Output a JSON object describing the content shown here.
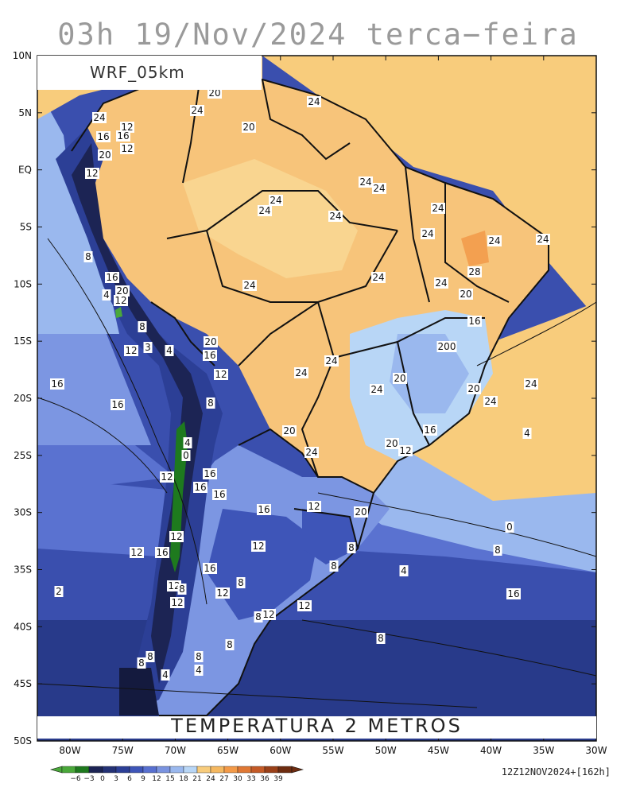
{
  "header": {
    "title": "03h 19/Nov/2024 terca−feira"
  },
  "map": {
    "model_label": "WRF_05km",
    "variable_label": "TEMPERATURA 2 METROS",
    "run_stamp": "12Z12NOV2024+[162h]",
    "lat_ticks": [
      "10N",
      "5N",
      "EQ",
      "5S",
      "10S",
      "15S",
      "20S",
      "25S",
      "30S",
      "35S",
      "40S",
      "45S",
      "50S"
    ],
    "lon_ticks": [
      "80W",
      "75W",
      "70W",
      "65W",
      "60W",
      "55W",
      "50W",
      "45W",
      "40W",
      "35W",
      "30W"
    ],
    "contour_labels": [
      {
        "text": "20"
      },
      {
        "text": "24"
      },
      {
        "text": "24"
      },
      {
        "text": "24"
      },
      {
        "text": "12"
      },
      {
        "text": "16"
      },
      {
        "text": "16"
      },
      {
        "text": "20"
      },
      {
        "text": "12"
      },
      {
        "text": "20"
      },
      {
        "text": "12"
      },
      {
        "text": "24"
      },
      {
        "text": "24"
      },
      {
        "text": "24"
      },
      {
        "text": "24"
      },
      {
        "text": "24"
      },
      {
        "text": "24"
      },
      {
        "text": "24"
      },
      {
        "text": "24"
      },
      {
        "text": "24"
      },
      {
        "text": "8"
      },
      {
        "text": "16"
      },
      {
        "text": "4"
      },
      {
        "text": "20"
      },
      {
        "text": "12"
      },
      {
        "text": "24"
      },
      {
        "text": "24"
      },
      {
        "text": "28"
      },
      {
        "text": "24"
      },
      {
        "text": "20"
      },
      {
        "text": "8"
      },
      {
        "text": "16"
      },
      {
        "text": "12"
      },
      {
        "text": "3"
      },
      {
        "text": "4"
      },
      {
        "text": "20"
      },
      {
        "text": "16"
      },
      {
        "text": "200"
      },
      {
        "text": "12"
      },
      {
        "text": "24"
      },
      {
        "text": "24"
      },
      {
        "text": "20"
      },
      {
        "text": "16"
      },
      {
        "text": "16"
      },
      {
        "text": "8"
      },
      {
        "text": "24"
      },
      {
        "text": "20"
      },
      {
        "text": "24"
      },
      {
        "text": "24"
      },
      {
        "text": "16"
      },
      {
        "text": "20"
      },
      {
        "text": "4"
      },
      {
        "text": "0"
      },
      {
        "text": "20"
      },
      {
        "text": "24"
      },
      {
        "text": "12"
      },
      {
        "text": "4"
      },
      {
        "text": "12"
      },
      {
        "text": "16"
      },
      {
        "text": "16"
      },
      {
        "text": "16"
      },
      {
        "text": "16"
      },
      {
        "text": "12"
      },
      {
        "text": "20"
      },
      {
        "text": "0"
      },
      {
        "text": "12"
      },
      {
        "text": "8"
      },
      {
        "text": "12"
      },
      {
        "text": "16"
      },
      {
        "text": "8"
      },
      {
        "text": "16"
      },
      {
        "text": "12"
      },
      {
        "text": "4"
      },
      {
        "text": "8"
      },
      {
        "text": "12"
      },
      {
        "text": "8"
      },
      {
        "text": "8"
      },
      {
        "text": "12"
      },
      {
        "text": "16"
      },
      {
        "text": "2"
      },
      {
        "text": "12"
      },
      {
        "text": "12"
      },
      {
        "text": "8"
      },
      {
        "text": "12"
      },
      {
        "text": "8"
      },
      {
        "text": "8"
      },
      {
        "text": "8"
      },
      {
        "text": "8"
      },
      {
        "text": "8"
      },
      {
        "text": "4"
      },
      {
        "text": "4"
      }
    ]
  },
  "colorbar": {
    "labels": [
      "−6",
      "−3",
      "0",
      "3",
      "6",
      "9",
      "12",
      "15",
      "18",
      "21",
      "24",
      "27",
      "30",
      "33",
      "36",
      "39"
    ],
    "colors": [
      "#4aa83a",
      "#1e7a1e",
      "#1c2454",
      "#243275",
      "#2c3f96",
      "#3e55b8",
      "#5870d0",
      "#7a93e0",
      "#9ab8ee",
      "#b8d6f6",
      "#f8cc7c",
      "#f5b860",
      "#f39a48",
      "#e07834",
      "#c45a26",
      "#9a4018",
      "#6e2c10"
    ]
  }
}
